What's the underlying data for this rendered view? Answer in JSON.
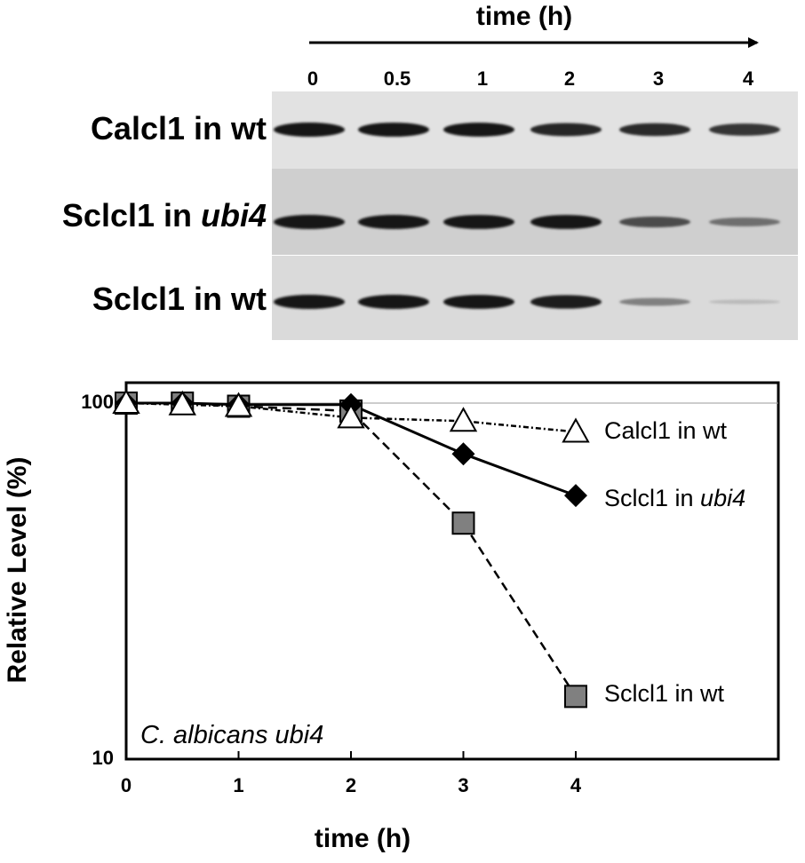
{
  "blot": {
    "header": "time (h)",
    "lanes": [
      "0",
      "0.5",
      "1",
      "2",
      "3",
      "4"
    ],
    "rows": [
      {
        "label_main": "Calcl1 in wt",
        "label_italic": ""
      },
      {
        "label_main": "Sclcl1 in ",
        "label_italic": "ubi4"
      },
      {
        "label_main": "Sclcl1 in wt",
        "label_italic": ""
      }
    ]
  },
  "chart_data": {
    "type": "line",
    "xlabel": "time (h)",
    "ylabel": "Relative Level (%)",
    "yscale": "log",
    "ylim": [
      10,
      100
    ],
    "xlim": [
      0,
      5.5
    ],
    "xticks": [
      "0",
      "1",
      "2",
      "3",
      "4"
    ],
    "yticks": [
      "10",
      "100"
    ],
    "annotation": "C. albicans ubi4",
    "series": [
      {
        "name": "Calcl1 in wt",
        "label_main": "Calcl1 in wt",
        "label_italic": "",
        "marker": "triangle-open",
        "line": "dash-dot",
        "x": [
          0,
          0.5,
          1,
          2,
          3,
          4
        ],
        "y": [
          100,
          99,
          98,
          91,
          89,
          83
        ]
      },
      {
        "name": "Sclcl1 in ubi4",
        "label_main": "Sclcl1 in ",
        "label_italic": "ubi4",
        "marker": "diamond-filled",
        "line": "solid",
        "x": [
          0,
          0.5,
          1,
          2,
          3,
          4
        ],
        "y": [
          100,
          100,
          99,
          99,
          72,
          55
        ]
      },
      {
        "name": "Sclcl1 in wt",
        "label_main": "Sclcl1 in wt",
        "label_italic": "",
        "marker": "square-gray",
        "line": "dashed",
        "x": [
          0,
          0.5,
          1,
          2,
          3,
          4
        ],
        "y": [
          100,
          100,
          98,
          95,
          46,
          15
        ]
      }
    ],
    "colors": {
      "diamond": "#000000",
      "square": "#808080",
      "triangle": "#ffffff"
    }
  }
}
